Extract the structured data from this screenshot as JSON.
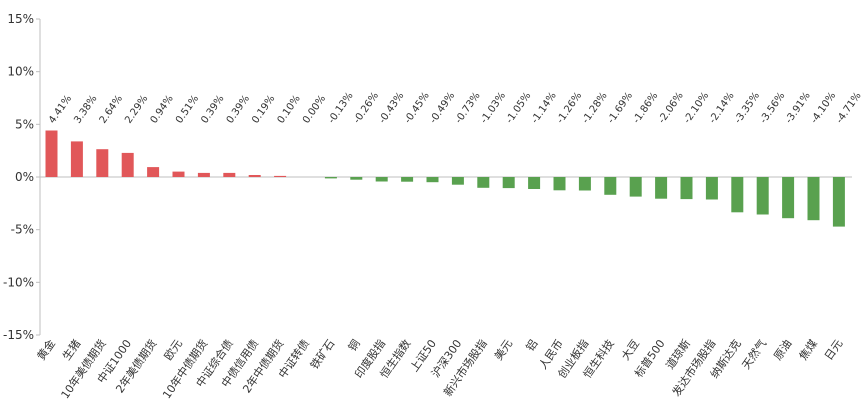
{
  "chart_data": {
    "type": "bar",
    "title": "",
    "xlabel": "",
    "ylabel": "",
    "ylim": [
      -15,
      15
    ],
    "yticks": [
      -15,
      -10,
      -5,
      0,
      5,
      10,
      15
    ],
    "ytick_labels": [
      "-15%",
      "-10%",
      "-5%",
      "0%",
      "5%",
      "10%",
      "15%"
    ],
    "grid": false,
    "legend": "none",
    "colors": {
      "positive": "#e15759",
      "negative": "#59a14f",
      "axis": "#bfbfbf"
    },
    "categories": [
      "黄金",
      "生猪",
      "10年美债期货",
      "中证1000",
      "2年美债期货",
      "欧元",
      "10年中债期货",
      "中证综合债",
      "中债信用债",
      "2年中债期货",
      "中证转债",
      "铁矿石",
      "铜",
      "印度股指",
      "恒生指数",
      "上证50",
      "沪深300",
      "新兴市场股指",
      "美元",
      "铝",
      "人民币",
      "创业板指",
      "恒生科技",
      "大豆",
      "标普500",
      "道琼斯",
      "发达市场股指",
      "纳斯达克",
      "天然气",
      "原油",
      "焦煤",
      "日元"
    ],
    "values": [
      4.41,
      3.38,
      2.64,
      2.29,
      0.94,
      0.51,
      0.39,
      0.39,
      0.19,
      0.1,
      0.0,
      -0.13,
      -0.26,
      -0.43,
      -0.45,
      -0.49,
      -0.73,
      -1.03,
      -1.05,
      -1.14,
      -1.26,
      -1.28,
      -1.69,
      -1.86,
      -2.06,
      -2.1,
      -2.14,
      -3.35,
      -3.56,
      -3.91,
      -4.1,
      -4.71
    ],
    "data_labels": [
      "4.41%",
      "3.38%",
      "2.64%",
      "2.29%",
      "0.94%",
      "0.51%",
      "0.39%",
      "0.39%",
      "0.19%",
      "0.10%",
      "0.00%",
      "-0.13%",
      "-0.26%",
      "-0.43%",
      "-0.45%",
      "-0.49%",
      "-0.73%",
      "-1.03%",
      "-1.05%",
      "-1.14%",
      "-1.26%",
      "-1.28%",
      "-1.69%",
      "-1.86%",
      "-2.06%",
      "-2.10%",
      "-2.14%",
      "-3.35%",
      "-3.56%",
      "-3.91%",
      "-4.10%",
      "-4.71%"
    ]
  }
}
